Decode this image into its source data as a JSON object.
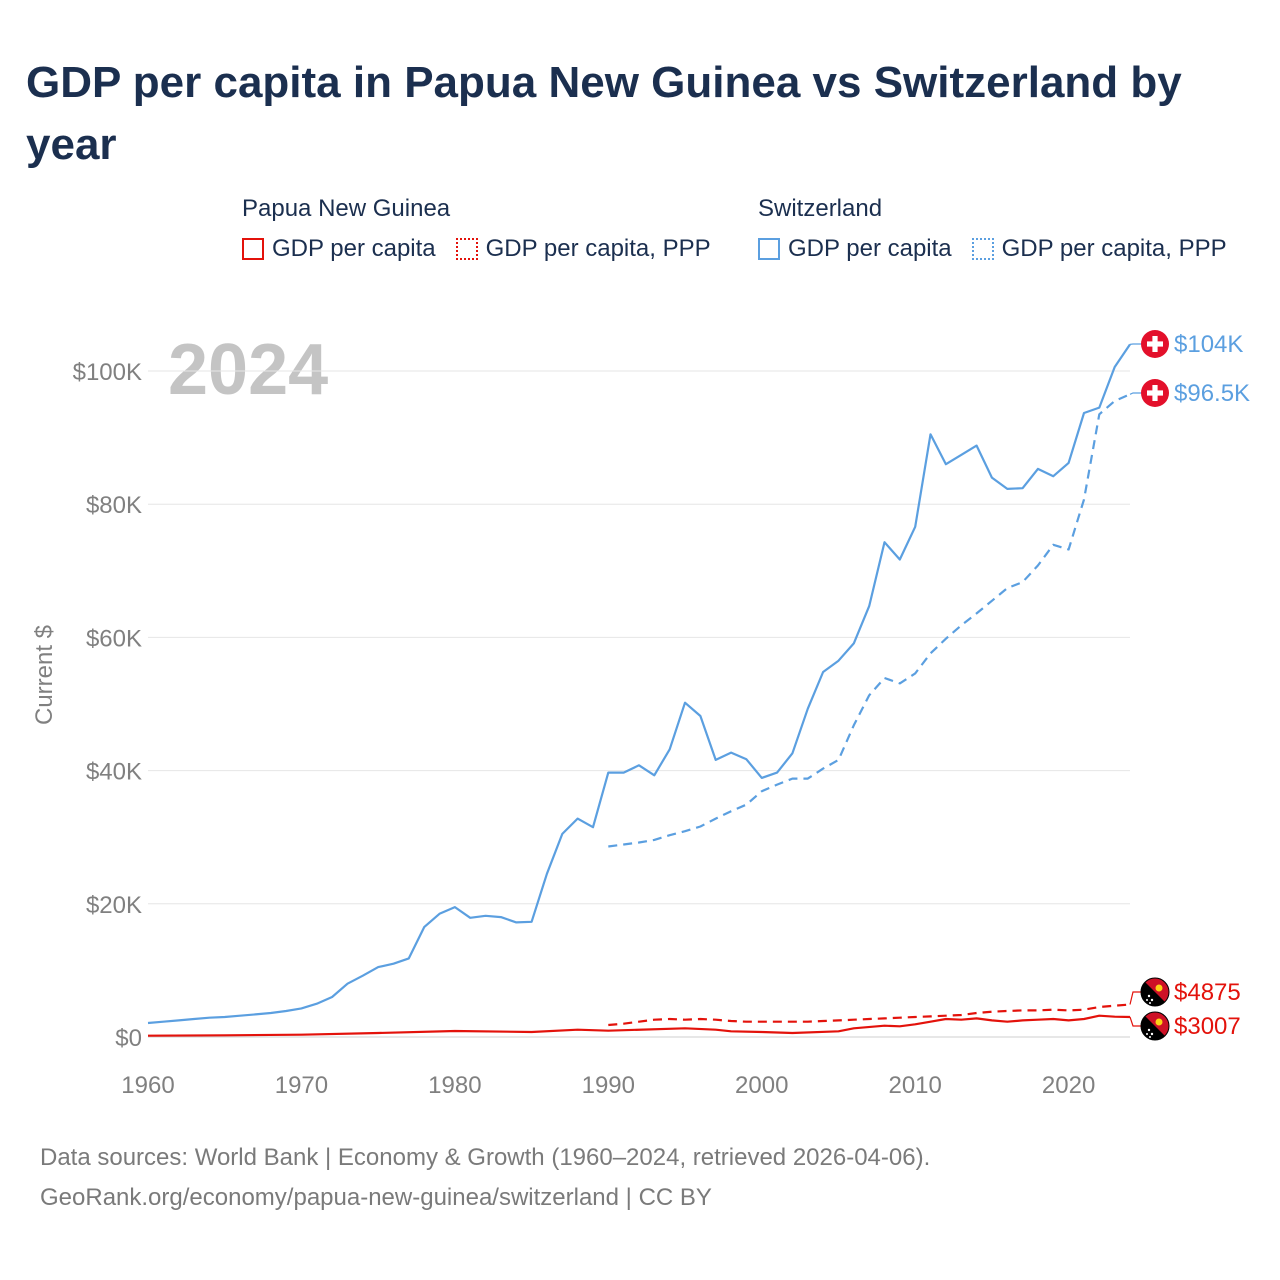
{
  "title": "GDP per capita in Papua New Guinea vs Switzerland by year",
  "legend": {
    "groups": [
      {
        "country": "Papua New Guinea",
        "items": [
          "GDP per capita",
          "GDP per capita, PPP"
        ],
        "color": "#e3120b"
      },
      {
        "country": "Switzerland",
        "items": [
          "GDP per capita",
          "GDP per capita, PPP"
        ],
        "color": "#5b9fe0"
      }
    ]
  },
  "chart_data": {
    "type": "line",
    "year_label": "2024",
    "ylabel": "Current $",
    "xlim": [
      1960,
      2024
    ],
    "ylim": [
      0,
      105000
    ],
    "yticks": [
      {
        "value": 0,
        "label": "$0"
      },
      {
        "value": 20000,
        "label": "$20K"
      },
      {
        "value": 40000,
        "label": "$40K"
      },
      {
        "value": 60000,
        "label": "$60K"
      },
      {
        "value": 80000,
        "label": "$80K"
      },
      {
        "value": 100000,
        "label": "$100K"
      }
    ],
    "xticks": [
      {
        "value": 1960,
        "label": "1960"
      },
      {
        "value": 1970,
        "label": "1970"
      },
      {
        "value": 1980,
        "label": "1980"
      },
      {
        "value": 1990,
        "label": "1990"
      },
      {
        "value": 2000,
        "label": "2000"
      },
      {
        "value": 2010,
        "label": "2010"
      },
      {
        "value": 2020,
        "label": "2020"
      }
    ],
    "series": [
      {
        "name": "Switzerland GDP per capita",
        "color": "#5b9fe0",
        "dash": false,
        "end_label": "$104K",
        "flag": "swiss-flag",
        "x": [
          1960,
          1961,
          1962,
          1963,
          1964,
          1965,
          1966,
          1967,
          1968,
          1969,
          1970,
          1971,
          1972,
          1973,
          1974,
          1975,
          1976,
          1977,
          1978,
          1979,
          1980,
          1981,
          1982,
          1983,
          1984,
          1985,
          1986,
          1987,
          1988,
          1989,
          1990,
          1991,
          1992,
          1993,
          1994,
          1995,
          1996,
          1997,
          1998,
          1999,
          2000,
          2001,
          2002,
          2003,
          2004,
          2005,
          2006,
          2007,
          2008,
          2009,
          2010,
          2011,
          2012,
          2013,
          2014,
          2015,
          2016,
          2017,
          2018,
          2019,
          2020,
          2021,
          2022,
          2023,
          2024
        ],
        "y": [
          2100,
          2300,
          2500,
          2700,
          2900,
          3000,
          3200,
          3400,
          3600,
          3900,
          4300,
          5000,
          6000,
          8000,
          9200,
          10500,
          11000,
          11800,
          16500,
          18500,
          19500,
          17900,
          18200,
          18000,
          17200,
          17300,
          24500,
          30500,
          32800,
          31500,
          39700,
          39700,
          40800,
          39300,
          43200,
          50200,
          48200,
          41600,
          42700,
          41700,
          38900,
          39700,
          42600,
          49300,
          54800,
          56500,
          59100,
          64700,
          74300,
          71700,
          76600,
          90500,
          86000,
          87400,
          88800,
          84000,
          82300,
          82400,
          85300,
          84200,
          86200,
          93700,
          94500,
          100600,
          104000
        ]
      },
      {
        "name": "Switzerland GDP per capita, PPP",
        "color": "#5b9fe0",
        "dash": true,
        "end_label": "$96.5K",
        "flag": "swiss-flag",
        "x": [
          1990,
          1991,
          1992,
          1993,
          1994,
          1995,
          1996,
          1997,
          1998,
          1999,
          2000,
          2001,
          2002,
          2003,
          2004,
          2005,
          2006,
          2007,
          2008,
          2009,
          2010,
          2011,
          2012,
          2013,
          2014,
          2015,
          2016,
          2017,
          2018,
          2019,
          2020,
          2021,
          2022,
          2023,
          2024
        ],
        "y": [
          28600,
          28900,
          29200,
          29600,
          30300,
          30900,
          31600,
          32800,
          33900,
          34900,
          36900,
          37900,
          38800,
          38800,
          40300,
          41600,
          46800,
          51300,
          53900,
          53100,
          54600,
          57600,
          59800,
          61800,
          63600,
          65500,
          67400,
          68300,
          70800,
          73900,
          73200,
          80700,
          93500,
          95500,
          96500
        ]
      },
      {
        "name": "Papua New Guinea GDP per capita, PPP",
        "color": "#e3120b",
        "dash": true,
        "end_label": "$4875",
        "flag": "png-flag",
        "x": [
          1990,
          1991,
          1992,
          1993,
          1994,
          1995,
          1996,
          1997,
          1998,
          1999,
          2000,
          2001,
          2002,
          2003,
          2004,
          2005,
          2006,
          2007,
          2008,
          2009,
          2010,
          2011,
          2012,
          2013,
          2014,
          2015,
          2016,
          2017,
          2018,
          2019,
          2020,
          2021,
          2022,
          2023,
          2024
        ],
        "y": [
          1800,
          2000,
          2300,
          2600,
          2700,
          2600,
          2700,
          2600,
          2400,
          2300,
          2300,
          2300,
          2300,
          2300,
          2400,
          2500,
          2600,
          2700,
          2800,
          2900,
          3000,
          3100,
          3200,
          3300,
          3600,
          3800,
          3900,
          4000,
          4000,
          4100,
          4000,
          4100,
          4500,
          4700,
          4875
        ]
      },
      {
        "name": "Papua New Guinea GDP per capita",
        "color": "#e3120b",
        "dash": false,
        "end_label": "$3007",
        "flag": "png-flag",
        "x": [
          1960,
          1965,
          1970,
          1975,
          1980,
          1985,
          1988,
          1990,
          1995,
          1997,
          1998,
          2000,
          2002,
          2005,
          2006,
          2008,
          2009,
          2010,
          2011,
          2012,
          2013,
          2014,
          2015,
          2016,
          2017,
          2018,
          2019,
          2020,
          2021,
          2022,
          2023,
          2024
        ],
        "y": [
          200,
          250,
          350,
          600,
          900,
          750,
          1100,
          950,
          1300,
          1100,
          850,
          750,
          600,
          850,
          1300,
          1700,
          1600,
          1900,
          2300,
          2700,
          2600,
          2800,
          2500,
          2300,
          2500,
          2600,
          2700,
          2500,
          2700,
          3200,
          3050,
          3007
        ]
      }
    ]
  },
  "footer": {
    "line1": "Data sources: World Bank | Economy & Growth (1960–2024, retrieved 2026-04-06).",
    "line2": "GeoRank.org/economy/papua-new-guinea/switzerland | CC BY"
  }
}
